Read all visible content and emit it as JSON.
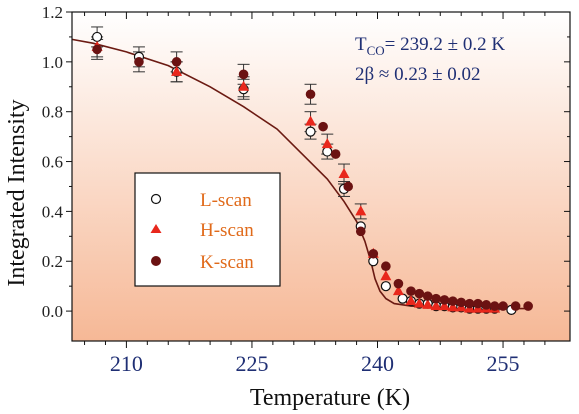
{
  "chart_data": {
    "type": "scatter",
    "xlabel": "Temperature (K)",
    "ylabel": "Integrated Intensity",
    "xlim": [
      203.5,
      263.0
    ],
    "ylim": [
      -0.12,
      1.2
    ],
    "xticks": [
      210,
      225,
      240,
      255
    ],
    "xtick_labels": [
      "210",
      "225",
      "240",
      "255"
    ],
    "yticks": [
      0.0,
      0.2,
      0.4,
      0.6,
      0.8,
      1.0,
      1.2
    ],
    "ytick_labels": [
      "0.0",
      "0.2",
      "0.4",
      "0.6",
      "0.8",
      "1.0",
      "1.2"
    ],
    "grid": false,
    "legend_position": "center-left",
    "annotations": {
      "tco_text": "T",
      "tco_sub": "CO",
      "tco_value": "= 239.2 ± 0.2 K",
      "beta_text": "2β ≈ 0.23 ± 0.02"
    },
    "fit_curve": [
      [
        203.5,
        1.09
      ],
      [
        206,
        1.075
      ],
      [
        210,
        1.04
      ],
      [
        215,
        0.985
      ],
      [
        220,
        0.9
      ],
      [
        224,
        0.82
      ],
      [
        228,
        0.73
      ],
      [
        231,
        0.63
      ],
      [
        234,
        0.53
      ],
      [
        236,
        0.44
      ],
      [
        237.5,
        0.36
      ],
      [
        238.5,
        0.28
      ],
      [
        239.2,
        0.2
      ],
      [
        239.7,
        0.13
      ],
      [
        240.3,
        0.08
      ],
      [
        241,
        0.05
      ],
      [
        242,
        0.03
      ],
      [
        244,
        0.02
      ],
      [
        248,
        0.015
      ],
      [
        255,
        0.01
      ],
      [
        258,
        0.01
      ]
    ],
    "series": [
      {
        "name": "L-scan",
        "marker": "open-circle",
        "color": "#111111",
        "points": [
          {
            "x": 206.5,
            "y": 1.1,
            "err": 0.04
          },
          {
            "x": 211.5,
            "y": 1.02,
            "err": 0.04
          },
          {
            "x": 216.0,
            "y": 0.96,
            "err": 0.04
          },
          {
            "x": 224.0,
            "y": 0.89,
            "err": 0.04
          },
          {
            "x": 232.0,
            "y": 0.72,
            "err": 0.03
          },
          {
            "x": 234.0,
            "y": 0.64,
            "err": 0.03
          },
          {
            "x": 236.0,
            "y": 0.49,
            "err": 0.03
          },
          {
            "x": 238.0,
            "y": 0.34,
            "err": 0.0
          },
          {
            "x": 239.5,
            "y": 0.2,
            "err": 0.0
          },
          {
            "x": 241.0,
            "y": 0.1,
            "err": 0.0
          },
          {
            "x": 243.0,
            "y": 0.05,
            "err": 0.0
          },
          {
            "x": 244.0,
            "y": 0.04,
            "err": 0.0
          },
          {
            "x": 245.0,
            "y": 0.03,
            "err": 0.0
          },
          {
            "x": 246.0,
            "y": 0.03,
            "err": 0.0
          },
          {
            "x": 247.0,
            "y": 0.02,
            "err": 0.0
          },
          {
            "x": 248.0,
            "y": 0.02,
            "err": 0.0
          },
          {
            "x": 249.0,
            "y": 0.015,
            "err": 0.0
          },
          {
            "x": 250.0,
            "y": 0.015,
            "err": 0.0
          },
          {
            "x": 251.0,
            "y": 0.01,
            "err": 0.0
          },
          {
            "x": 252.0,
            "y": 0.01,
            "err": 0.0
          },
          {
            "x": 253.0,
            "y": 0.01,
            "err": 0.0
          },
          {
            "x": 254.0,
            "y": 0.01,
            "err": 0.0
          },
          {
            "x": 256.0,
            "y": 0.005,
            "err": 0.0
          }
        ]
      },
      {
        "name": "H-scan",
        "marker": "filled-triangle",
        "color": "#e8271c",
        "points": [
          {
            "x": 206.5,
            "y": 1.06,
            "err": 0.04
          },
          {
            "x": 216.0,
            "y": 0.96,
            "err": 0.04
          },
          {
            "x": 224.0,
            "y": 0.9,
            "err": 0.04
          },
          {
            "x": 232.0,
            "y": 0.76,
            "err": 0.04
          },
          {
            "x": 234.0,
            "y": 0.67,
            "err": 0.04
          },
          {
            "x": 236.0,
            "y": 0.55,
            "err": 0.04
          },
          {
            "x": 238.0,
            "y": 0.4,
            "err": 0.03
          },
          {
            "x": 239.5,
            "y": 0.23,
            "err": 0.0
          },
          {
            "x": 241.0,
            "y": 0.14,
            "err": 0.0
          },
          {
            "x": 242.5,
            "y": 0.08,
            "err": 0.0
          },
          {
            "x": 244.0,
            "y": 0.04,
            "err": 0.0
          },
          {
            "x": 245.0,
            "y": 0.03,
            "err": 0.0
          },
          {
            "x": 246.0,
            "y": 0.025,
            "err": 0.0
          },
          {
            "x": 247.0,
            "y": 0.02,
            "err": 0.0
          },
          {
            "x": 248.0,
            "y": 0.02,
            "err": 0.0
          },
          {
            "x": 249.0,
            "y": 0.015,
            "err": 0.0
          },
          {
            "x": 250.0,
            "y": 0.015,
            "err": 0.0
          },
          {
            "x": 251.0,
            "y": 0.01,
            "err": 0.0
          },
          {
            "x": 252.0,
            "y": 0.01,
            "err": 0.0
          },
          {
            "x": 253.0,
            "y": 0.01,
            "err": 0.0
          },
          {
            "x": 254.0,
            "y": 0.01,
            "err": 0.0
          }
        ]
      },
      {
        "name": "K-scan",
        "marker": "filled-circle",
        "color": "#6b1212",
        "points": [
          {
            "x": 206.5,
            "y": 1.05,
            "err": 0.04
          },
          {
            "x": 211.5,
            "y": 1.0,
            "err": 0.04
          },
          {
            "x": 216.0,
            "y": 1.0,
            "err": 0.04
          },
          {
            "x": 224.0,
            "y": 0.95,
            "err": 0.04
          },
          {
            "x": 232.0,
            "y": 0.87,
            "err": 0.04
          },
          {
            "x": 233.5,
            "y": 0.74,
            "err": 0.0
          },
          {
            "x": 235.0,
            "y": 0.63,
            "err": 0.0
          },
          {
            "x": 236.5,
            "y": 0.5,
            "err": 0.0
          },
          {
            "x": 238.0,
            "y": 0.32,
            "err": 0.0
          },
          {
            "x": 239.5,
            "y": 0.23,
            "err": 0.0
          },
          {
            "x": 241.0,
            "y": 0.18,
            "err": 0.0
          },
          {
            "x": 242.5,
            "y": 0.11,
            "err": 0.0
          },
          {
            "x": 244.0,
            "y": 0.08,
            "err": 0.0
          },
          {
            "x": 245.0,
            "y": 0.07,
            "err": 0.0
          },
          {
            "x": 246.0,
            "y": 0.06,
            "err": 0.0
          },
          {
            "x": 247.0,
            "y": 0.05,
            "err": 0.0
          },
          {
            "x": 248.0,
            "y": 0.045,
            "err": 0.0
          },
          {
            "x": 249.0,
            "y": 0.04,
            "err": 0.0
          },
          {
            "x": 250.0,
            "y": 0.035,
            "err": 0.0
          },
          {
            "x": 251.0,
            "y": 0.03,
            "err": 0.0
          },
          {
            "x": 252.0,
            "y": 0.03,
            "err": 0.0
          },
          {
            "x": 253.0,
            "y": 0.025,
            "err": 0.0
          },
          {
            "x": 254.0,
            "y": 0.02,
            "err": 0.0
          },
          {
            "x": 255.0,
            "y": 0.02,
            "err": 0.0
          },
          {
            "x": 256.5,
            "y": 0.02,
            "err": 0.0
          },
          {
            "x": 258.0,
            "y": 0.02,
            "err": 0.0
          }
        ]
      }
    ],
    "colors": {
      "fit_line": "#6b1a12",
      "axis": "#111111",
      "background_top": "#ffffff",
      "background_bottom": "#f6b896"
    }
  }
}
